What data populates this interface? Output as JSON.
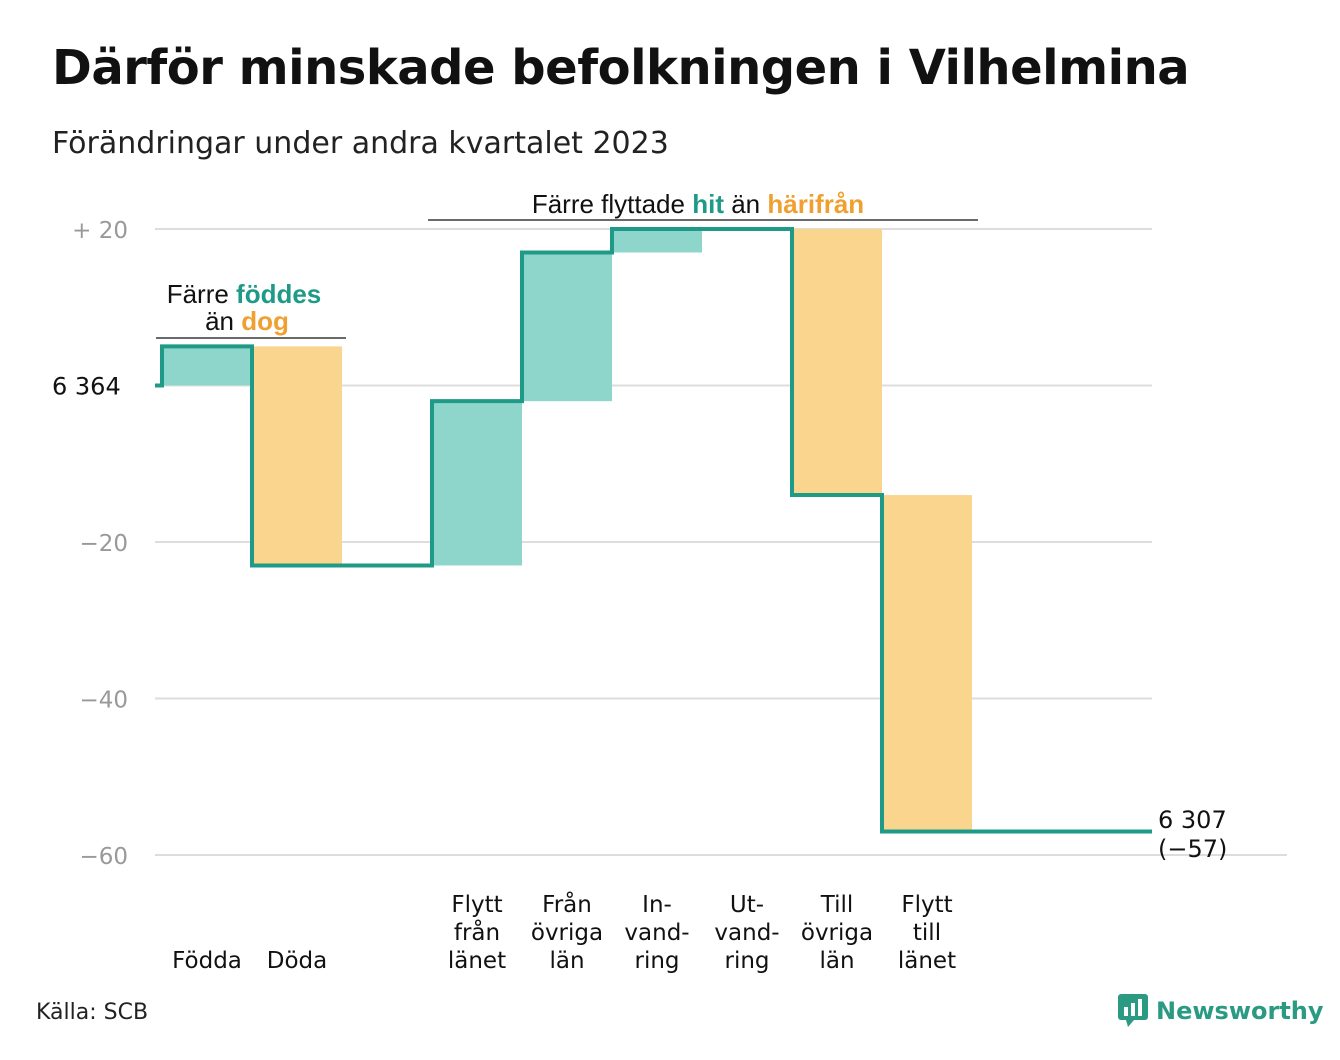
{
  "title": "Därför minskade befolkningen i Vilhelmina",
  "subtitle": "Förändringar under andra kvartalet 2023",
  "source": "Källa: SCB",
  "brand": {
    "name": "Newsworthy",
    "icon": "newsworthy-logo-icon"
  },
  "colors": {
    "increase": "#8ed6cc",
    "decrease": "#fad58e",
    "line": "#1f9a86",
    "teal_text": "#1f9a86",
    "orange_text": "#f0a030",
    "grid": "#dddddd",
    "tick": "#999999"
  },
  "annotations": {
    "births": {
      "line1_prefix": "Färre ",
      "line1_highlight": "föddes",
      "line2_prefix": "än ",
      "line2_highlight": "dog"
    },
    "migration": {
      "prefix": "Färre flyttade ",
      "hit": "hit",
      "mid": " än ",
      "harifran": "härifrån"
    }
  },
  "chart_data": {
    "type": "waterfall",
    "title": "Därför minskade befolkningen i Vilhelmina",
    "subtitle": "Förändringar under andra kvartalet 2023",
    "start_value": 6364,
    "start_label": "6  364",
    "end_value": 6307,
    "end_label": "6 307",
    "end_change_label": "(−57)",
    "ylim": [
      -60,
      20
    ],
    "yticks": [
      {
        "value": 20,
        "label": "+  20"
      },
      {
        "value": 0,
        "label": ""
      },
      {
        "value": -20,
        "label": "−20"
      },
      {
        "value": -40,
        "label": "−40"
      },
      {
        "value": -60,
        "label": "−60"
      }
    ],
    "grid": true,
    "steps": [
      {
        "label": [
          "Födda"
        ],
        "change": 5,
        "kind": "increase"
      },
      {
        "label": [
          "Döda"
        ],
        "change": -28,
        "kind": "decrease"
      },
      {
        "label": [],
        "change": 0,
        "kind": "gap"
      },
      {
        "label": [
          "Flytt",
          "från",
          "länet"
        ],
        "change": 21,
        "kind": "increase"
      },
      {
        "label": [
          "Från",
          "övriga",
          "län"
        ],
        "change": 19,
        "kind": "increase"
      },
      {
        "label": [
          "In-",
          "vand-",
          "ring"
        ],
        "change": 3,
        "kind": "increase"
      },
      {
        "label": [
          "Ut-",
          "vand-",
          "ring"
        ],
        "change": 0,
        "kind": "decrease"
      },
      {
        "label": [
          "Till",
          "övriga",
          "län"
        ],
        "change": -34,
        "kind": "decrease"
      },
      {
        "label": [
          "Flytt",
          "till",
          "länet"
        ],
        "change": -43,
        "kind": "decrease"
      }
    ]
  }
}
